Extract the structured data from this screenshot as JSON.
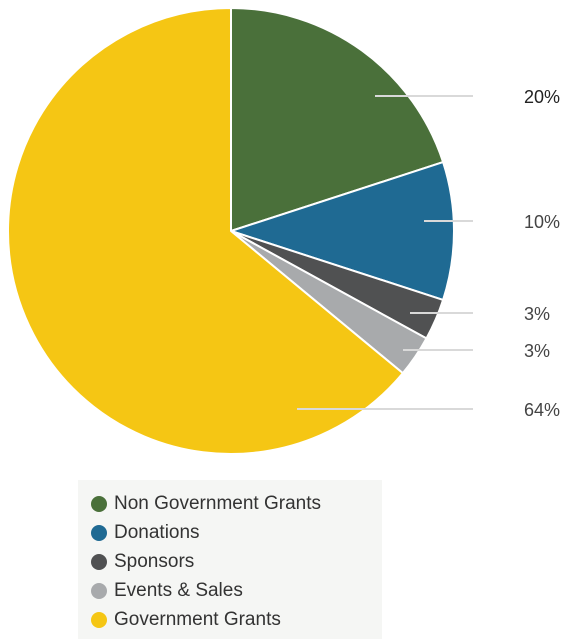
{
  "chart_data": {
    "type": "pie",
    "title": "",
    "slices": [
      {
        "name": "Non Government Grants",
        "value": 20,
        "label": "20%",
        "color": "#4a703a"
      },
      {
        "name": "Donations",
        "value": 10,
        "label": "10%",
        "color": "#1f6a93"
      },
      {
        "name": "Sponsors",
        "value": 3,
        "label": "3%",
        "color": "#505152"
      },
      {
        "name": "Events & Sales",
        "value": 3,
        "label": "3%",
        "color": "#a8aaac"
      },
      {
        "name": "Government Grants",
        "value": 64,
        "label": "64%",
        "color": "#f5c614"
      }
    ],
    "legend_position": "bottom",
    "start_angle_deg": 0,
    "direction": "clockwise"
  },
  "legend": {
    "items": [
      {
        "label": "Non Government Grants",
        "color": "#4a703a"
      },
      {
        "label": "Donations",
        "color": "#1f6a93"
      },
      {
        "label": "Sponsors",
        "color": "#505152"
      },
      {
        "label": "Events & Sales",
        "color": "#a8aaac"
      },
      {
        "label": "Government Grants",
        "color": "#f5c614"
      }
    ]
  }
}
